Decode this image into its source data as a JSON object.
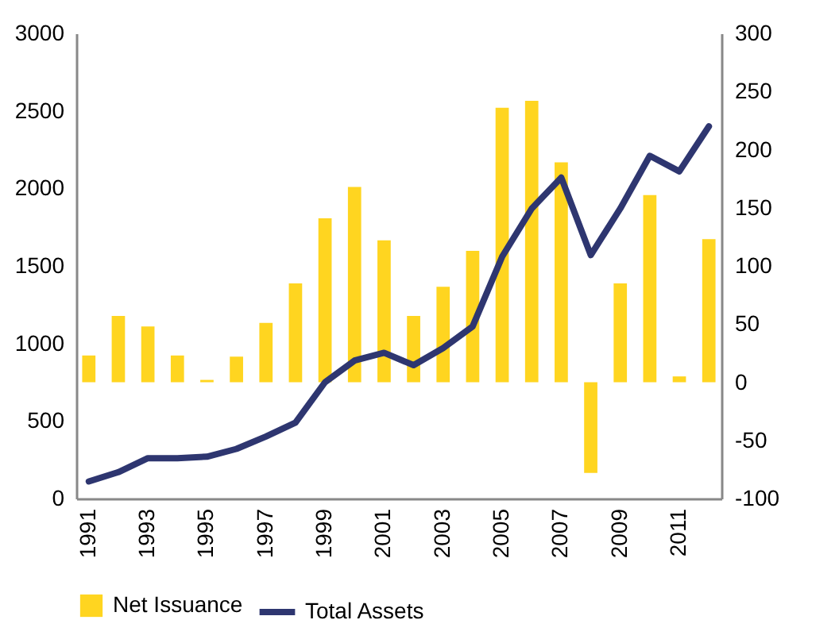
{
  "chart_data": {
    "type": "bar",
    "categories": [
      "1991",
      null,
      "1993",
      null,
      "1995",
      null,
      "1997",
      null,
      "1999",
      null,
      "2001",
      null,
      "2003",
      null,
      "2005",
      null,
      "2007",
      null,
      "2009",
      null,
      "2011",
      null
    ],
    "series": [
      {
        "name": "Net Issuance",
        "axis": "y2",
        "color": "#ffd520",
        "values": [
          23,
          57,
          48,
          23,
          2,
          22,
          51,
          85,
          141,
          168,
          122,
          57,
          82,
          113,
          236,
          242,
          189,
          -78,
          85,
          161,
          5,
          123
        ]
      },
      {
        "name": "Total Assets",
        "type": "line",
        "color": "#2e3670",
        "values": [
          110,
          170,
          260,
          260,
          270,
          320,
          400,
          490,
          750,
          890,
          940,
          860,
          970,
          1110,
          1560,
          1870,
          2070,
          1570,
          1870,
          2210,
          2110,
          2400
        ]
      }
    ],
    "ylim": [
      0,
      3000
    ],
    "yticks": [
      0,
      500,
      1000,
      1500,
      2000,
      2500,
      3000
    ],
    "y2lim": [
      -100,
      300
    ],
    "y2ticks": [
      -100,
      -50,
      0,
      50,
      100,
      150,
      200,
      250,
      300
    ],
    "grid": false,
    "legend": "bottom"
  }
}
